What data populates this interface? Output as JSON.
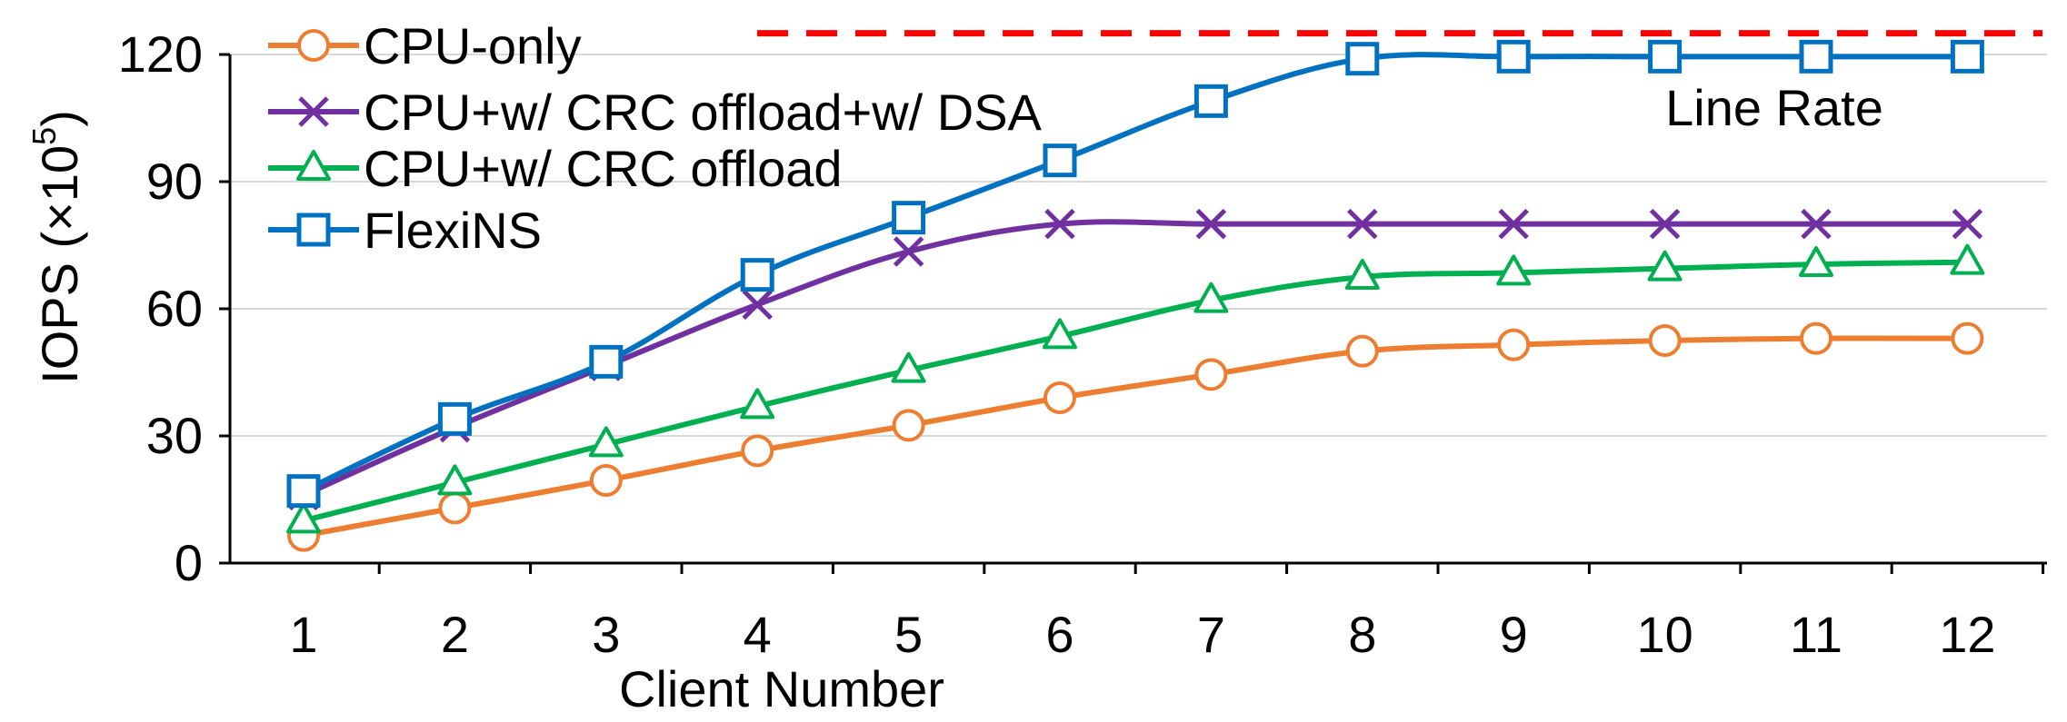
{
  "chart_data": {
    "type": "line",
    "xlabel": "Client Number",
    "ylabel_main": "IOPS (×10",
    "ylabel_sup": "5",
    "ylabel_close": ")",
    "ylim": [
      0,
      120
    ],
    "yticks": [
      0,
      30,
      60,
      90,
      120
    ],
    "categories": [
      "1",
      "2",
      "3",
      "4",
      "5",
      "6",
      "7",
      "8",
      "9",
      "10",
      "11",
      "12"
    ],
    "line_rate": {
      "label": "Line Rate",
      "value": 125,
      "color": "#ff0000",
      "x_start": 4.6
    },
    "series": [
      {
        "name": "CPU-only",
        "marker": "circle",
        "color": "#ed7d31",
        "values": [
          6.5,
          13,
          19.5,
          26.5,
          32.5,
          39,
          44.5,
          50,
          51.5,
          52.5,
          53,
          53
        ]
      },
      {
        "name": "CPU+w/ CRC offload+w/ DSA",
        "marker": "x",
        "color": "#7030a0",
        "values": [
          16,
          32,
          46.5,
          61,
          73.5,
          80,
          80,
          80,
          80,
          80,
          80,
          80
        ]
      },
      {
        "name": "CPU+w/ CRC offload",
        "marker": "triangle",
        "color": "#00b050",
        "values": [
          10,
          19,
          28,
          37,
          45.5,
          53.5,
          62,
          67.5,
          68.5,
          69.5,
          70.5,
          71
        ]
      },
      {
        "name": "FlexiNS",
        "marker": "square",
        "color": "#0070c0",
        "values": [
          17,
          34,
          47.5,
          68,
          81.5,
          95,
          109,
          119,
          119.5,
          119.5,
          119.5,
          119.5
        ]
      }
    ]
  }
}
